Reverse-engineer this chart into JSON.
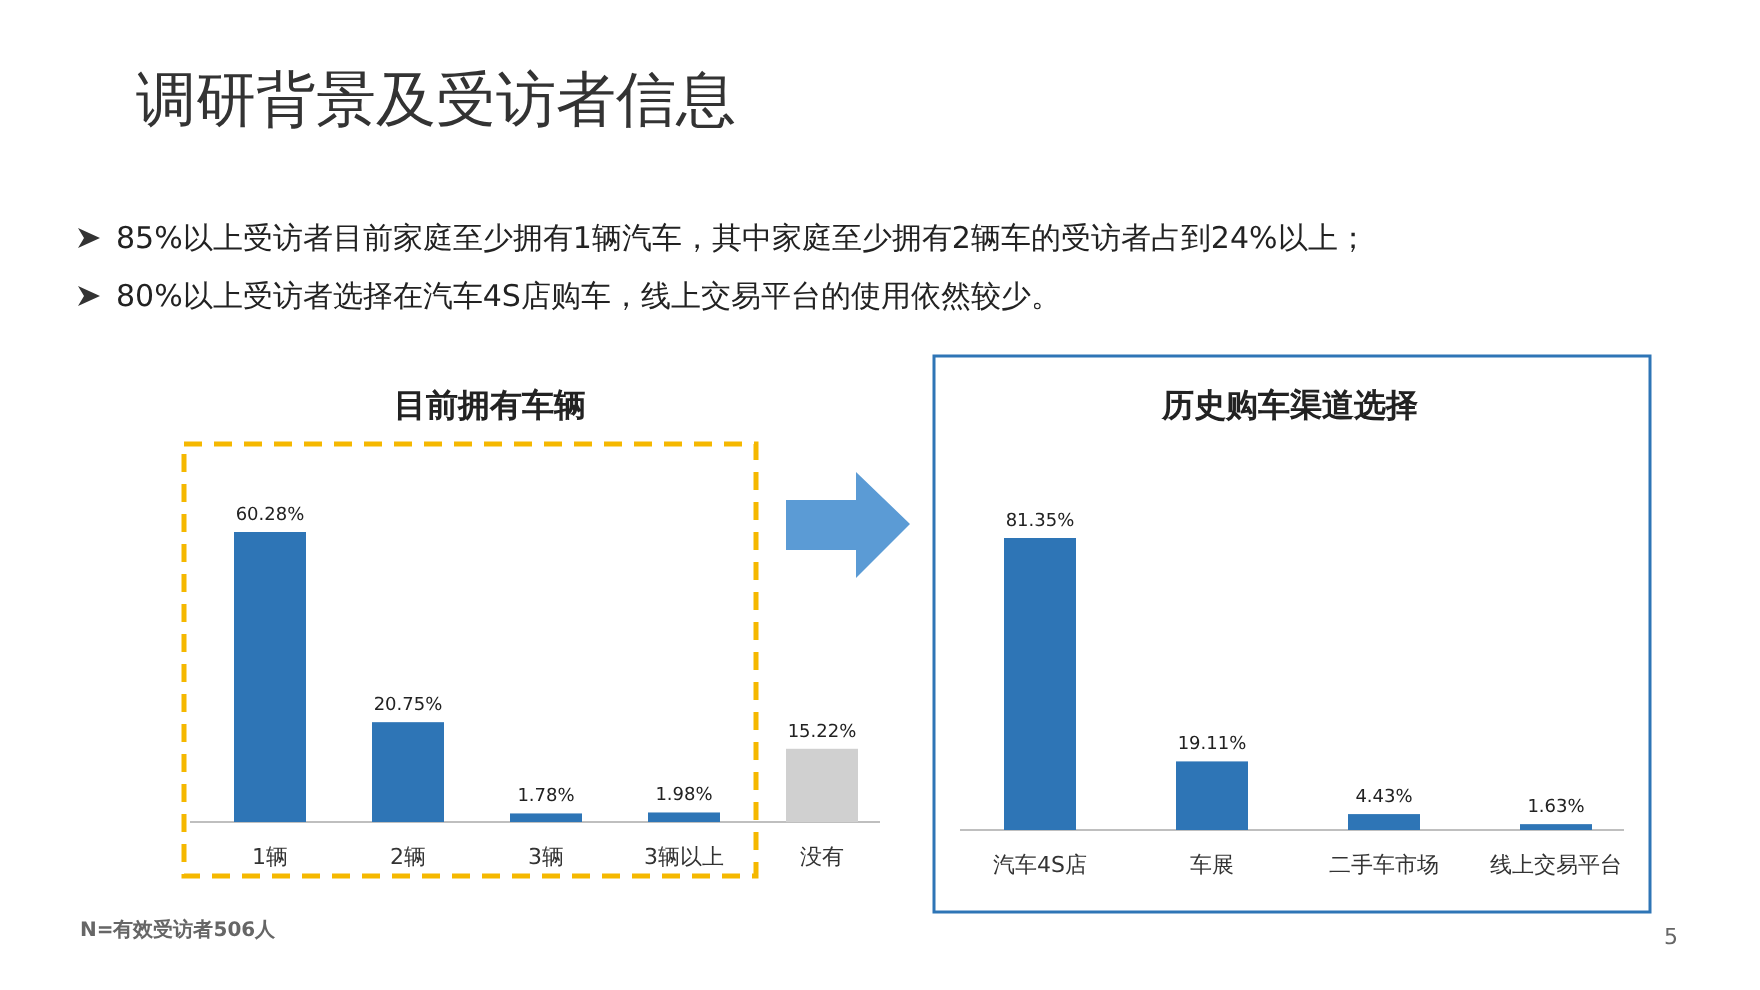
{
  "chart_data": [
    {
      "type": "other",
      "title": "调研背景及受访者信息",
      "annotations": [
        "85%以上受访者目前家庭至少拥有1辆汽车，其中家庭至少拥有2辆车的受访者占到24%以上；",
        "80%以上受访者选择在汽车4S店购车，线上交易平台的使用依然较少。",
        "N=有效受访者506人",
        "5"
      ]
    },
    {
      "type": "bar",
      "title": "目前拥有车辆",
      "categories": [
        "1辆",
        "2辆",
        "3辆",
        "3辆以上",
        "没有"
      ],
      "values": [
        60.28,
        20.75,
        1.78,
        1.98,
        15.22
      ],
      "colors": [
        "#2e75b6",
        "#2e75b6",
        "#2e75b6",
        "#2e75b6",
        "#d0d0d0"
      ],
      "value_labels": [
        "60.28%",
        "20.75%",
        "1.78%",
        "1.98%",
        "15.22%"
      ],
      "tick_labels": "x"
    },
    {
      "type": "bar",
      "title": "历史购车渠道选择",
      "categories": [
        "汽车4S店",
        "车展",
        "二手车市场",
        "线上交易平台"
      ],
      "values": [
        81.35,
        19.11,
        4.43,
        1.63
      ],
      "colors": [
        "#2e75b6",
        "#2e75b6",
        "#2e75b6",
        "#2e75b6"
      ],
      "value_labels": [
        "81.35%",
        "19.11%",
        "4.43%",
        "1.63%"
      ],
      "tick_labels": "x"
    }
  ]
}
